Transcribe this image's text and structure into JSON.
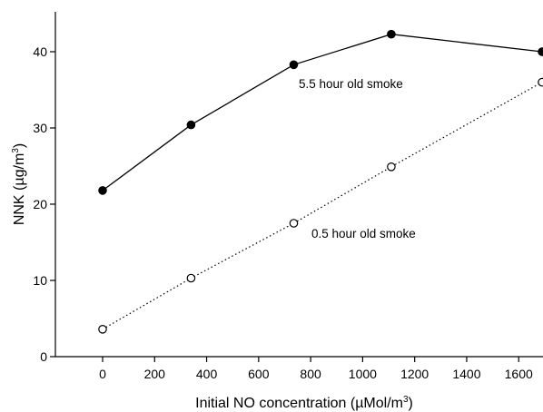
{
  "chart_data": {
    "type": "line",
    "title": "",
    "xlabel": "Initial NO concentration (µMol/m",
    "xlabel_sup": "3",
    "xlabel_end": ")",
    "ylabel": "NNK (µg/m",
    "ylabel_sup": "3",
    "ylabel_end": ")",
    "xlim": [
      -130,
      1690
    ],
    "ylim": [
      0,
      45
    ],
    "x_ticks": [
      0,
      200,
      400,
      600,
      800,
      1000,
      1200,
      1400,
      1600
    ],
    "y_ticks": [
      0,
      10,
      20,
      30,
      40
    ],
    "grid": false,
    "series": [
      {
        "name": "5.5 hour old smoke",
        "marker": "filled-circle",
        "line_style": "solid",
        "color": "#000000",
        "x": [
          0,
          340,
          735,
          1110,
          1690
        ],
        "y": [
          21.8,
          30.4,
          38.3,
          42.3,
          40.0
        ]
      },
      {
        "name": "0.5 hour old smoke",
        "marker": "open-circle",
        "line_style": "dotted",
        "color": "#000000",
        "x": [
          0,
          340,
          735,
          1110,
          1690
        ],
        "y": [
          3.6,
          10.3,
          17.5,
          24.9,
          36.0
        ]
      }
    ]
  }
}
